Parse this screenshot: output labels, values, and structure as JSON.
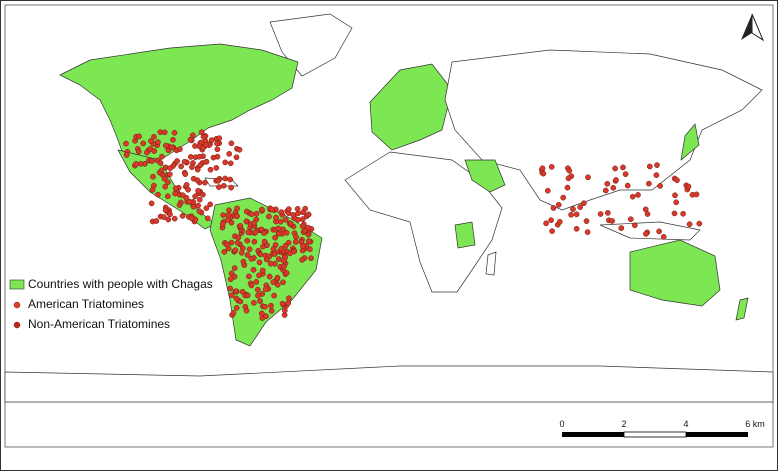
{
  "legend": {
    "items": [
      "Countries with people with Chagas",
      "American Triatomines",
      "Non-American Triatomines"
    ]
  },
  "scale_bar": {
    "labels": [
      "0",
      "2",
      "4",
      "6 km"
    ]
  }
}
